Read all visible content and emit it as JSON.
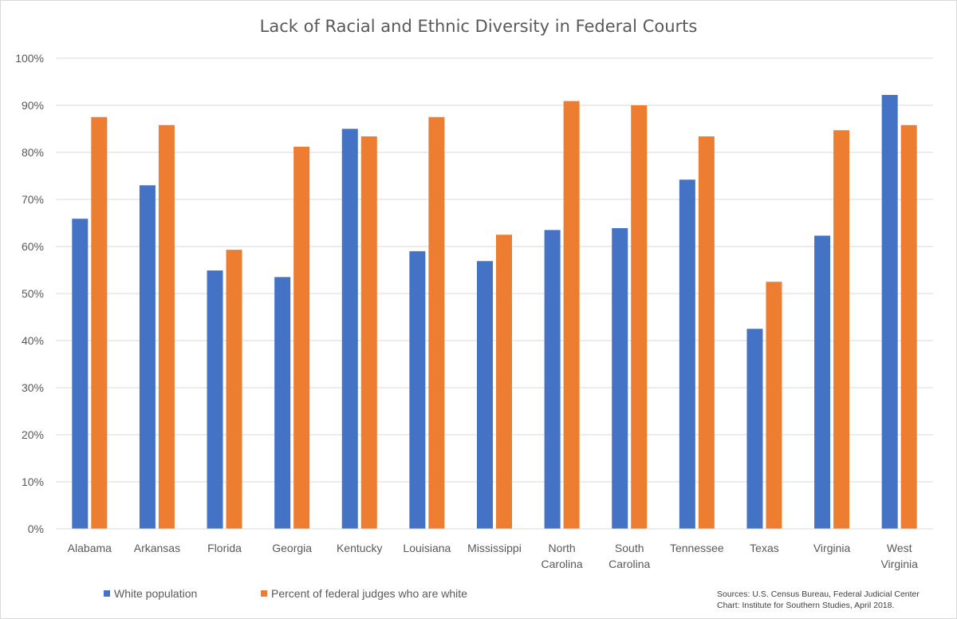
{
  "chart_data": {
    "type": "bar",
    "title": "Lack of Racial and Ethnic Diversity in Federal Courts",
    "categories": [
      [
        "Alabama"
      ],
      [
        "Arkansas"
      ],
      [
        "Florida"
      ],
      [
        "Georgia"
      ],
      [
        "Kentucky"
      ],
      [
        "Louisiana"
      ],
      [
        "Mississippi"
      ],
      [
        "North",
        "Carolina"
      ],
      [
        "South",
        "Carolina"
      ],
      [
        "Tennessee"
      ],
      [
        "Texas"
      ],
      [
        "Virginia"
      ],
      [
        "West",
        "Virginia"
      ]
    ],
    "series": [
      {
        "name": "White population",
        "color": "#4472C4",
        "values": [
          65.9,
          73.0,
          54.9,
          53.5,
          85.0,
          59.0,
          56.9,
          63.5,
          63.9,
          74.2,
          42.5,
          62.3,
          92.2
        ]
      },
      {
        "name": "Percent of federal judges who are white",
        "color": "#ED7D31",
        "values": [
          87.5,
          85.8,
          59.3,
          81.2,
          83.4,
          87.5,
          62.5,
          90.9,
          90.0,
          83.4,
          52.5,
          84.7,
          85.8
        ]
      }
    ],
    "ylim": [
      0,
      100
    ],
    "yticks": [
      0,
      10,
      20,
      30,
      40,
      50,
      60,
      70,
      80,
      90,
      100
    ],
    "ytick_suffix": "%",
    "grid": true,
    "legend_position": "bottom-left",
    "sources": [
      "Sources: U.S. Census Bureau, Federal Judicial Center",
      "Chart: Institute for Southern Studies, April 2018."
    ]
  }
}
